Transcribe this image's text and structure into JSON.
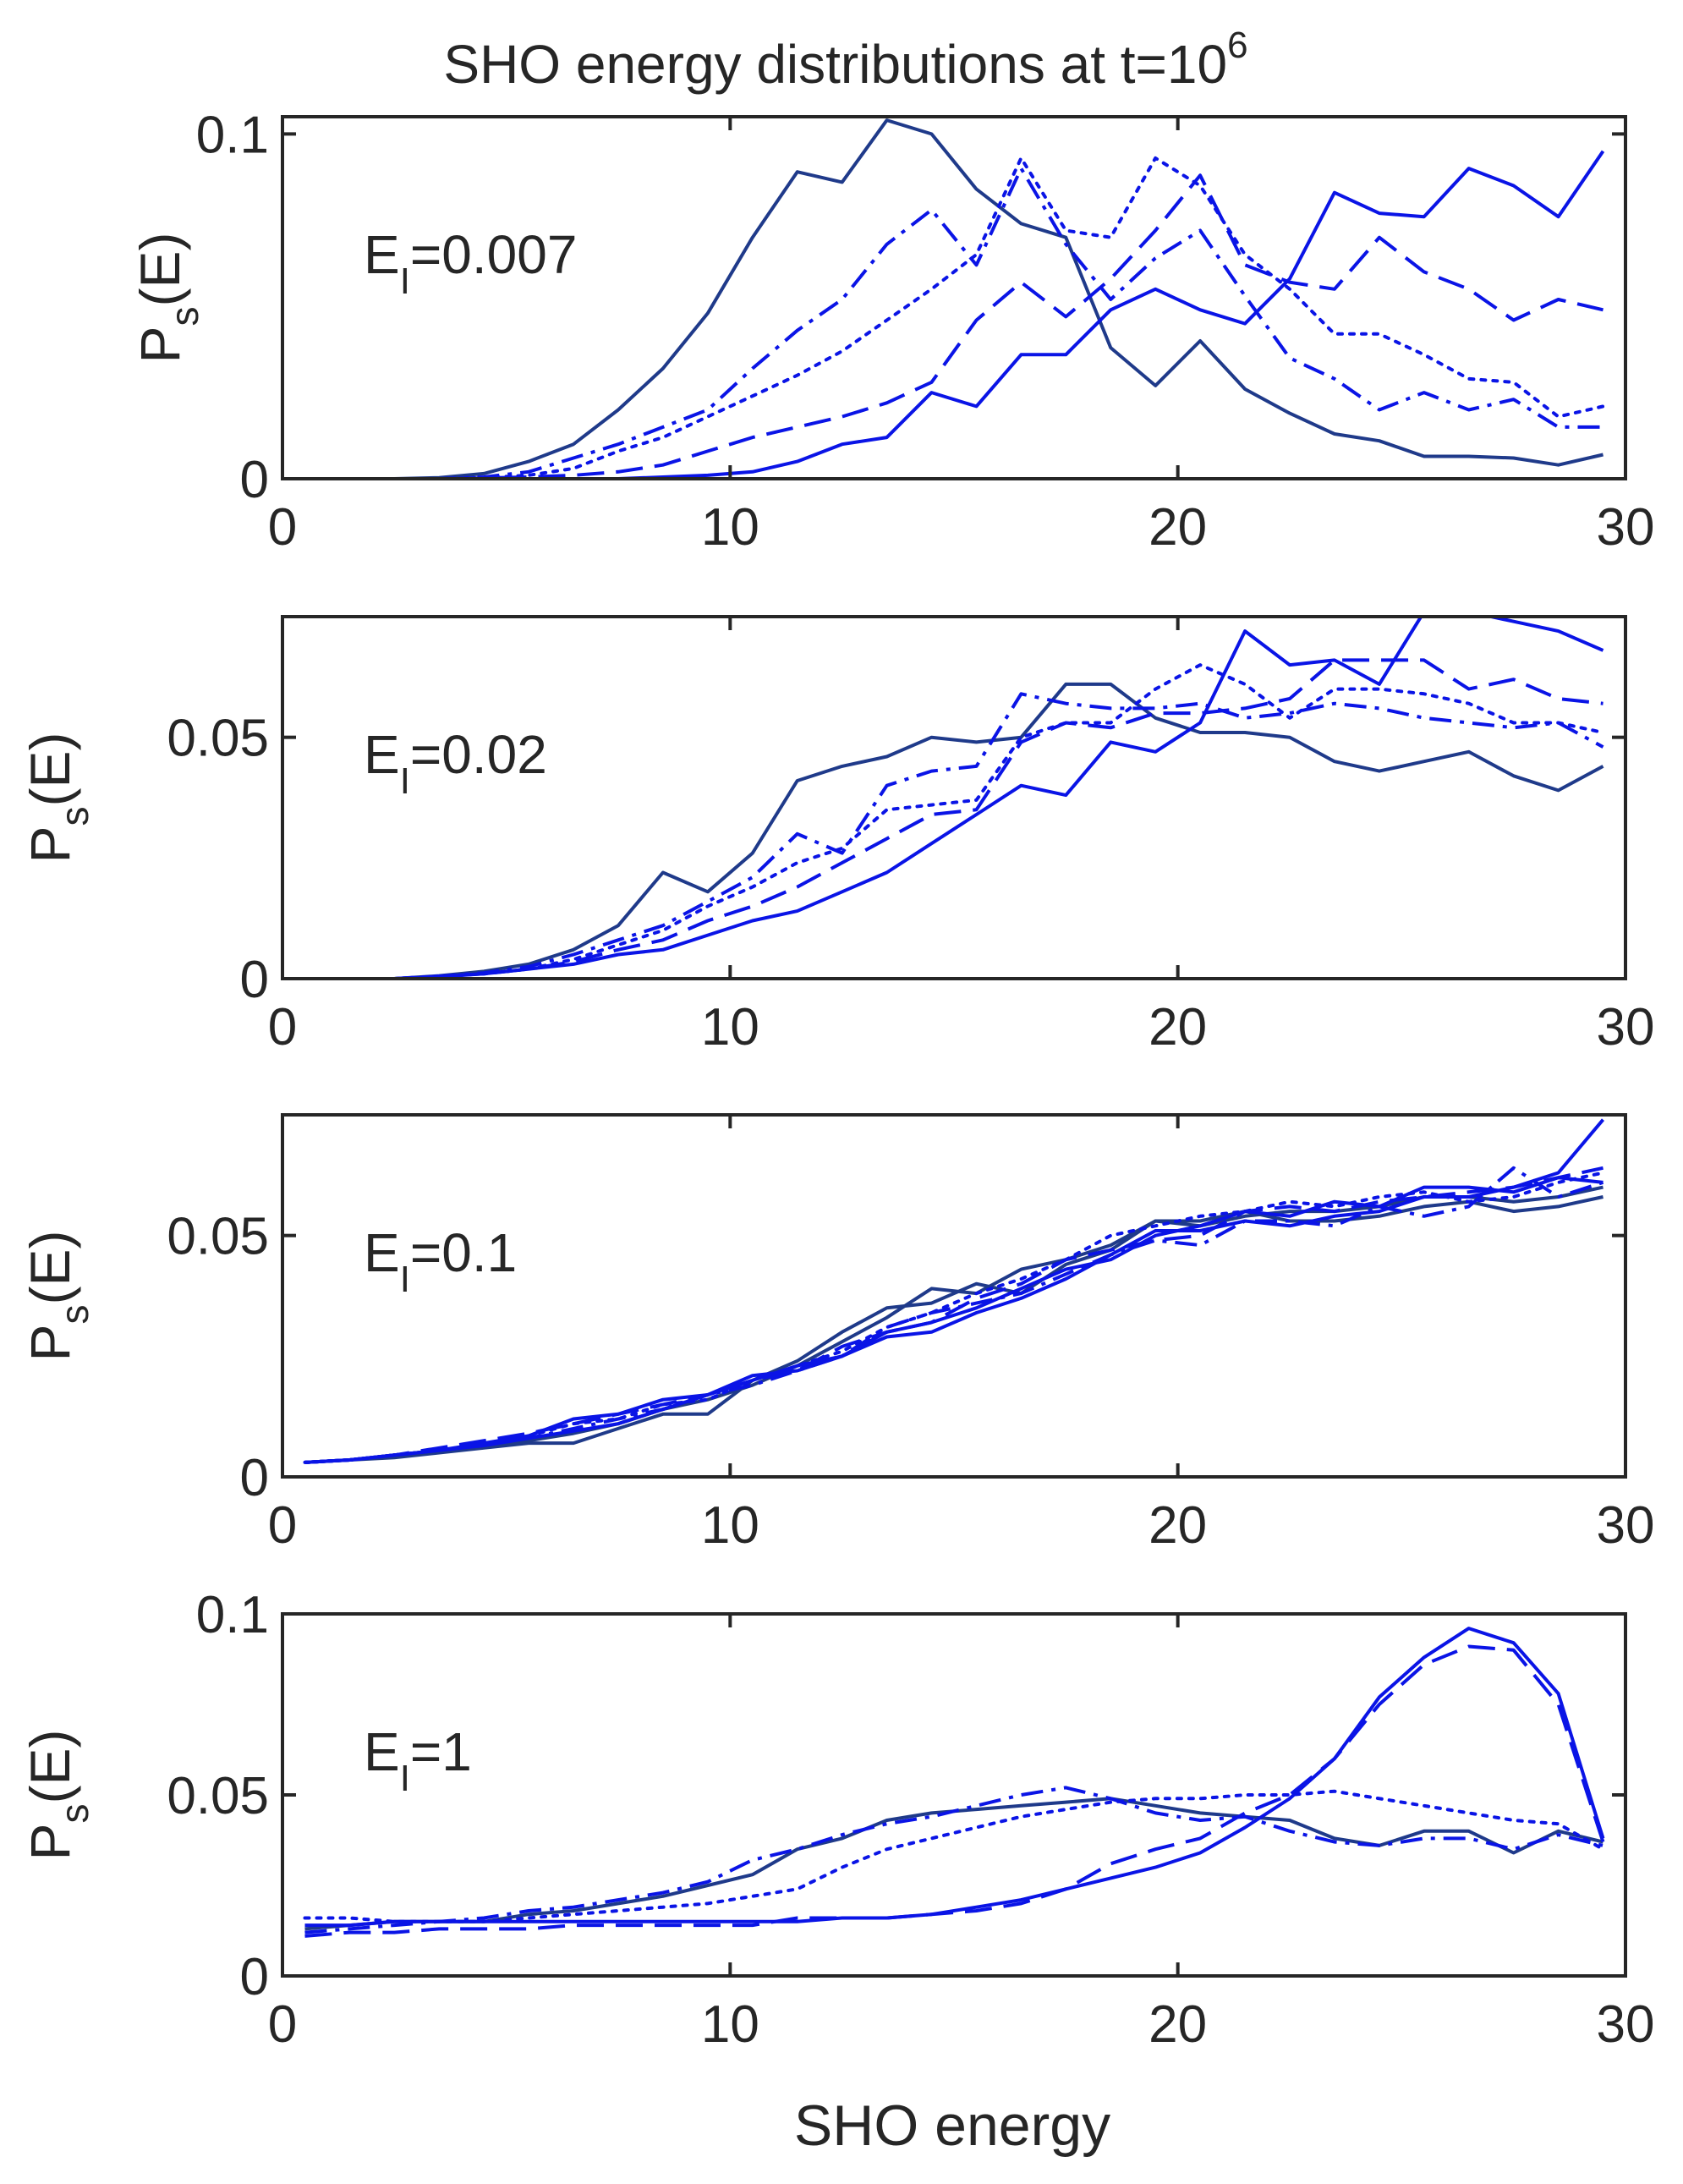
{
  "figure": {
    "title_prefix": "SHO energy distributions at t=10",
    "title_exponent": "6",
    "xlabel": "SHO energy"
  },
  "colors": {
    "axis": "#262626",
    "navy": "#1F3A8A",
    "blue": "#0A14E6",
    "background": "#FFFFFF"
  },
  "chart_data": [
    {
      "type": "line",
      "annotation": {
        "base": "E",
        "sub": "I",
        "value": "=0.007"
      },
      "ylabel": {
        "base": "P",
        "sub": "s",
        "rest": "(E)"
      },
      "xlim": [
        0,
        30
      ],
      "ylim": [
        0,
        0.105
      ],
      "xticks": [
        0,
        10,
        20,
        30
      ],
      "yticks": [
        0,
        0.1
      ],
      "ytick_labels": [
        "0",
        "0.1"
      ],
      "x": [
        0.5,
        1.5,
        2.5,
        3.5,
        4.5,
        5.5,
        6.5,
        7.5,
        8.5,
        9.5,
        10.5,
        11.5,
        12.5,
        13.5,
        14.5,
        15.5,
        16.5,
        17.5,
        18.5,
        19.5,
        20.5,
        21.5,
        22.5,
        23.5,
        24.5,
        25.5,
        26.5,
        27.5,
        28.5,
        29.5
      ],
      "series": [
        {
          "name": "navy-solid",
          "color": "navy",
          "dash": "solid",
          "values": [
            0,
            0,
            0,
            0.0003,
            0.0015,
            0.005,
            0.01,
            0.02,
            0.032,
            0.048,
            0.07,
            0.089,
            0.086,
            0.104,
            0.1,
            0.084,
            0.074,
            0.07,
            0.038,
            0.027,
            0.04,
            0.026,
            0.019,
            0.013,
            0.011,
            0.0065,
            0.0065,
            0.006,
            0.004,
            0.007
          ]
        },
        {
          "name": "blue-dashdot",
          "color": "blue",
          "dash": "dashdot",
          "values": [
            0,
            0,
            0,
            0,
            0.0005,
            0.002,
            0.006,
            0.01,
            0.015,
            0.02,
            0.032,
            0.043,
            0.052,
            0.068,
            0.078,
            0.062,
            0.09,
            0.068,
            0.052,
            0.064,
            0.072,
            0.053,
            0.035,
            0.029,
            0.02,
            0.025,
            0.02,
            0.023,
            0.015,
            0.015
          ]
        },
        {
          "name": "blue-dotted",
          "color": "blue",
          "dash": "dotted",
          "values": [
            0,
            0,
            0,
            0,
            0.0003,
            0.001,
            0.003,
            0.008,
            0.012,
            0.018,
            0.024,
            0.03,
            0.037,
            0.046,
            0.055,
            0.065,
            0.093,
            0.072,
            0.07,
            0.093,
            0.085,
            0.065,
            0.055,
            0.042,
            0.042,
            0.036,
            0.029,
            0.028,
            0.018,
            0.021
          ]
        },
        {
          "name": "blue-dashed",
          "color": "blue",
          "dash": "dashed",
          "values": [
            0,
            0,
            0,
            0,
            0.0002,
            0.0005,
            0.001,
            0.002,
            0.004,
            0.008,
            0.012,
            0.015,
            0.018,
            0.022,
            0.028,
            0.046,
            0.057,
            0.047,
            0.058,
            0.072,
            0.088,
            0.062,
            0.057,
            0.055,
            0.07,
            0.06,
            0.055,
            0.046,
            0.052,
            0.049
          ]
        },
        {
          "name": "blue-solid",
          "color": "blue",
          "dash": "solid",
          "values": [
            0,
            0,
            0,
            0,
            0,
            0,
            0,
            0,
            0.0005,
            0.001,
            0.002,
            0.005,
            0.01,
            0.012,
            0.025,
            0.021,
            0.036,
            0.036,
            0.049,
            0.055,
            0.049,
            0.045,
            0.058,
            0.083,
            0.077,
            0.076,
            0.09,
            0.085,
            0.076,
            0.095
          ]
        }
      ]
    },
    {
      "type": "line",
      "annotation": {
        "base": "E",
        "sub": "I",
        "value": "=0.02"
      },
      "ylabel": {
        "base": "P",
        "sub": "s",
        "rest": "(E)"
      },
      "xlim": [
        0,
        30
      ],
      "ylim": [
        0,
        0.075
      ],
      "xticks": [
        0,
        10,
        20,
        30
      ],
      "yticks": [
        0,
        0.05
      ],
      "ytick_labels": [
        "0",
        "0.05"
      ],
      "x": [
        0.5,
        1.5,
        2.5,
        3.5,
        4.5,
        5.5,
        6.5,
        7.5,
        8.5,
        9.5,
        10.5,
        11.5,
        12.5,
        13.5,
        14.5,
        15.5,
        16.5,
        17.5,
        18.5,
        19.5,
        20.5,
        21.5,
        22.5,
        23.5,
        24.5,
        25.5,
        26.5,
        27.5,
        28.5,
        29.5
      ],
      "series": [
        {
          "name": "navy-solid",
          "color": "navy",
          "dash": "solid",
          "values": [
            0,
            0,
            0,
            0.0006,
            0.0015,
            0.003,
            0.006,
            0.011,
            0.022,
            0.018,
            0.026,
            0.041,
            0.044,
            0.046,
            0.05,
            0.049,
            0.05,
            0.061,
            0.061,
            0.054,
            0.051,
            0.051,
            0.05,
            0.045,
            0.043,
            0.045,
            0.047,
            0.042,
            0.039,
            0.044
          ]
        },
        {
          "name": "blue-dashdot",
          "color": "blue",
          "dash": "dashdot",
          "values": [
            0,
            0,
            0,
            0.0005,
            0.0012,
            0.0025,
            0.005,
            0.008,
            0.011,
            0.016,
            0.021,
            0.03,
            0.026,
            0.04,
            0.043,
            0.044,
            0.059,
            0.057,
            0.056,
            0.056,
            0.057,
            0.054,
            0.055,
            0.057,
            0.056,
            0.054,
            0.053,
            0.052,
            0.053,
            0.048
          ]
        },
        {
          "name": "blue-dotted",
          "color": "blue",
          "dash": "dotted",
          "values": [
            0,
            0,
            0,
            0.0005,
            0.001,
            0.002,
            0.004,
            0.007,
            0.01,
            0.015,
            0.019,
            0.024,
            0.027,
            0.035,
            0.036,
            0.037,
            0.05,
            0.053,
            0.053,
            0.06,
            0.065,
            0.061,
            0.054,
            0.06,
            0.06,
            0.059,
            0.057,
            0.053,
            0.053,
            0.051
          ]
        },
        {
          "name": "blue-dashed",
          "color": "blue",
          "dash": "dashed",
          "values": [
            0,
            0,
            0,
            0.0005,
            0.001,
            0.002,
            0.0035,
            0.006,
            0.008,
            0.012,
            0.015,
            0.019,
            0.024,
            0.029,
            0.034,
            0.035,
            0.049,
            0.053,
            0.052,
            0.055,
            0.055,
            0.056,
            0.058,
            0.066,
            0.066,
            0.066,
            0.06,
            0.062,
            0.058,
            0.057
          ]
        },
        {
          "name": "blue-solid",
          "color": "blue",
          "dash": "solid",
          "values": [
            0,
            0,
            0,
            0.0004,
            0.001,
            0.002,
            0.003,
            0.005,
            0.006,
            0.009,
            0.012,
            0.014,
            0.018,
            0.022,
            0.028,
            0.034,
            0.04,
            0.038,
            0.049,
            0.047,
            0.053,
            0.072,
            0.065,
            0.066,
            0.061,
            0.076,
            0.076,
            0.074,
            0.072,
            0.068
          ]
        }
      ]
    },
    {
      "type": "line",
      "annotation": {
        "base": "E",
        "sub": "I",
        "value": "=0.1"
      },
      "ylabel": {
        "base": "P",
        "sub": "s",
        "rest": "(E)"
      },
      "xlim": [
        0,
        30
      ],
      "ylim": [
        0,
        0.075
      ],
      "xticks": [
        0,
        10,
        20,
        30
      ],
      "yticks": [
        0,
        0.05
      ],
      "ytick_labels": [
        "0",
        "0.05"
      ],
      "x": [
        0.5,
        1.5,
        2.5,
        3.5,
        4.5,
        5.5,
        6.5,
        7.5,
        8.5,
        9.5,
        10.5,
        11.5,
        12.5,
        13.5,
        14.5,
        15.5,
        16.5,
        17.5,
        18.5,
        19.5,
        20.5,
        21.5,
        22.5,
        23.5,
        24.5,
        25.5,
        26.5,
        27.5,
        28.5,
        29.5
      ],
      "series": [
        {
          "name": "navy-solid-a",
          "color": "navy",
          "dash": "solid",
          "values": [
            0.003,
            0.0035,
            0.004,
            0.005,
            0.006,
            0.007,
            0.007,
            0.01,
            0.013,
            0.013,
            0.02,
            0.024,
            0.03,
            0.035,
            0.036,
            0.04,
            0.038,
            0.044,
            0.047,
            0.053,
            0.053,
            0.055,
            0.053,
            0.053,
            0.054,
            0.056,
            0.057,
            0.055,
            0.056,
            0.058
          ]
        },
        {
          "name": "navy-solid-b",
          "color": "navy",
          "dash": "solid",
          "values": [
            0.003,
            0.0035,
            0.0045,
            0.0055,
            0.0065,
            0.0075,
            0.009,
            0.011,
            0.014,
            0.016,
            0.019,
            0.023,
            0.028,
            0.033,
            0.039,
            0.038,
            0.043,
            0.045,
            0.048,
            0.053,
            0.052,
            0.054,
            0.055,
            0.055,
            0.056,
            0.058,
            0.058,
            0.057,
            0.058,
            0.06
          ]
        },
        {
          "name": "blue-dashdot",
          "color": "blue",
          "dash": "dashdot",
          "values": [
            0.003,
            0.0035,
            0.0045,
            0.0055,
            0.0065,
            0.008,
            0.01,
            0.012,
            0.014,
            0.017,
            0.019,
            0.022,
            0.025,
            0.031,
            0.034,
            0.036,
            0.038,
            0.042,
            0.046,
            0.049,
            0.048,
            0.053,
            0.053,
            0.052,
            0.056,
            0.054,
            0.056,
            0.064,
            0.058,
            0.061
          ]
        },
        {
          "name": "blue-dotted",
          "color": "blue",
          "dash": "dotted",
          "values": [
            0.003,
            0.0035,
            0.0045,
            0.0055,
            0.0065,
            0.0085,
            0.011,
            0.012,
            0.015,
            0.016,
            0.02,
            0.023,
            0.026,
            0.031,
            0.034,
            0.038,
            0.041,
            0.045,
            0.05,
            0.052,
            0.054,
            0.055,
            0.057,
            0.056,
            0.058,
            0.059,
            0.057,
            0.058,
            0.061,
            0.063
          ]
        },
        {
          "name": "blue-dashed",
          "color": "blue",
          "dash": "dashed",
          "values": [
            0.003,
            0.0035,
            0.0045,
            0.006,
            0.0075,
            0.009,
            0.011,
            0.013,
            0.015,
            0.017,
            0.02,
            0.022,
            0.027,
            0.03,
            0.032,
            0.037,
            0.04,
            0.045,
            0.047,
            0.049,
            0.05,
            0.055,
            0.056,
            0.055,
            0.057,
            0.058,
            0.059,
            0.06,
            0.062,
            0.064
          ]
        },
        {
          "name": "blue-solid-a",
          "color": "blue",
          "dash": "solid",
          "values": [
            0.003,
            0.0035,
            0.0045,
            0.0055,
            0.0065,
            0.008,
            0.0095,
            0.011,
            0.014,
            0.017,
            0.02,
            0.023,
            0.025,
            0.029,
            0.03,
            0.034,
            0.037,
            0.041,
            0.046,
            0.051,
            0.051,
            0.053,
            0.052,
            0.054,
            0.055,
            0.058,
            0.058,
            0.06,
            0.063,
            0.074
          ]
        },
        {
          "name": "blue-solid-b",
          "color": "blue",
          "dash": "solid",
          "values": [
            0.003,
            0.0035,
            0.0045,
            0.0055,
            0.007,
            0.0085,
            0.012,
            0.013,
            0.016,
            0.017,
            0.021,
            0.022,
            0.025,
            0.03,
            0.032,
            0.035,
            0.039,
            0.043,
            0.045,
            0.05,
            0.052,
            0.055,
            0.054,
            0.057,
            0.056,
            0.06,
            0.06,
            0.059,
            0.062,
            0.061
          ]
        }
      ]
    },
    {
      "type": "line",
      "annotation": {
        "base": "E",
        "sub": "I",
        "value": "=1"
      },
      "ylabel": {
        "base": "P",
        "sub": "s",
        "rest": "(E)"
      },
      "xlim": [
        0,
        30
      ],
      "ylim": [
        0,
        0.1
      ],
      "xticks": [
        0,
        10,
        20,
        30
      ],
      "yticks": [
        0,
        0.05,
        0.1
      ],
      "ytick_labels": [
        "0",
        "0.05",
        "0.1"
      ],
      "x": [
        0.5,
        1.5,
        2.5,
        3.5,
        4.5,
        5.5,
        6.5,
        7.5,
        8.5,
        9.5,
        10.5,
        11.5,
        12.5,
        13.5,
        14.5,
        15.5,
        16.5,
        17.5,
        18.5,
        19.5,
        20.5,
        21.5,
        22.5,
        23.5,
        24.5,
        25.5,
        26.5,
        27.5,
        28.5,
        29.5
      ],
      "series": [
        {
          "name": "navy-solid",
          "color": "navy",
          "dash": "solid",
          "values": [
            0.013,
            0.014,
            0.015,
            0.015,
            0.015,
            0.017,
            0.018,
            0.02,
            0.022,
            0.025,
            0.028,
            0.035,
            0.038,
            0.043,
            0.045,
            0.046,
            0.047,
            0.048,
            0.049,
            0.047,
            0.045,
            0.044,
            0.043,
            0.038,
            0.036,
            0.04,
            0.04,
            0.034,
            0.04,
            0.037
          ]
        },
        {
          "name": "blue-dashdot",
          "color": "blue",
          "dash": "dashdot",
          "values": [
            0.012,
            0.013,
            0.014,
            0.015,
            0.016,
            0.018,
            0.019,
            0.021,
            0.023,
            0.026,
            0.032,
            0.035,
            0.039,
            0.042,
            0.044,
            0.047,
            0.05,
            0.052,
            0.049,
            0.045,
            0.043,
            0.044,
            0.04,
            0.037,
            0.036,
            0.038,
            0.038,
            0.035,
            0.039,
            0.036
          ]
        },
        {
          "name": "blue-dotted",
          "color": "blue",
          "dash": "dotted",
          "values": [
            0.016,
            0.016,
            0.015,
            0.015,
            0.015,
            0.016,
            0.017,
            0.018,
            0.019,
            0.02,
            0.022,
            0.024,
            0.03,
            0.035,
            0.038,
            0.041,
            0.044,
            0.046,
            0.048,
            0.049,
            0.049,
            0.05,
            0.05,
            0.051,
            0.049,
            0.047,
            0.045,
            0.043,
            0.042,
            0.035
          ]
        },
        {
          "name": "blue-dashed",
          "color": "blue",
          "dash": "dashed",
          "values": [
            0.011,
            0.012,
            0.012,
            0.013,
            0.013,
            0.013,
            0.014,
            0.014,
            0.014,
            0.014,
            0.014,
            0.016,
            0.016,
            0.016,
            0.017,
            0.018,
            0.02,
            0.024,
            0.031,
            0.035,
            0.038,
            0.045,
            0.05,
            0.06,
            0.075,
            0.086,
            0.091,
            0.09,
            0.075,
            0.037
          ]
        },
        {
          "name": "blue-solid",
          "color": "blue",
          "dash": "solid",
          "values": [
            0.014,
            0.014,
            0.015,
            0.015,
            0.015,
            0.015,
            0.015,
            0.015,
            0.015,
            0.015,
            0.015,
            0.015,
            0.016,
            0.016,
            0.017,
            0.019,
            0.021,
            0.024,
            0.027,
            0.03,
            0.034,
            0.041,
            0.049,
            0.06,
            0.077,
            0.088,
            0.096,
            0.092,
            0.078,
            0.038
          ]
        }
      ]
    }
  ]
}
